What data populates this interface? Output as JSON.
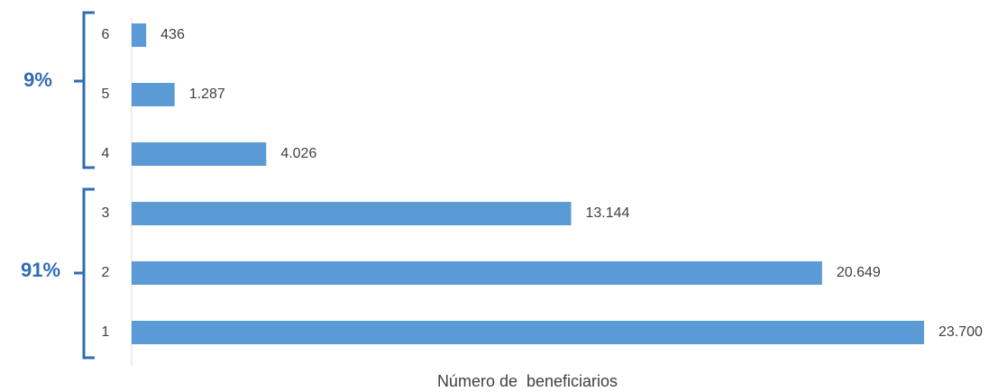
{
  "chart_data": {
    "type": "hbar",
    "categories": [
      "1",
      "2",
      "3",
      "4",
      "5",
      "6"
    ],
    "values": [
      23700,
      20649,
      13144,
      4026,
      1287,
      436
    ],
    "value_labels": [
      "23.700",
      "20.649",
      "13.144",
      "4.026",
      "1.287",
      "436"
    ],
    "color": "#5b9bd5",
    "xlim": [
      0,
      23700
    ],
    "x_label": "Número de  beneficiarios",
    "annotations": [
      "9%",
      "91%"
    ],
    "annotation_color": "#2f6db5"
  }
}
